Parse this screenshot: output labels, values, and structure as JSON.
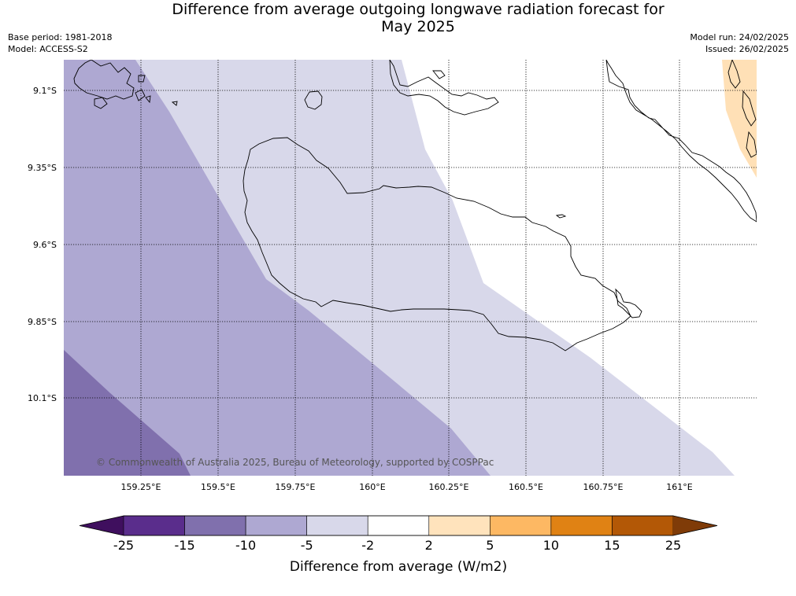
{
  "title_line1": "Difference from average outgoing longwave radiation forecast for",
  "title_line2": "May 2025",
  "base_period": "Base period: 1981-2018",
  "model": "Model: ACCESS-S2",
  "model_run": "Model run: 24/02/2025",
  "issued": "Issued: 26/02/2025",
  "copyright": "© Commonwealth of Australia 2025, Bureau of Meteorology, supported by COSPPac",
  "lat_labels": [
    "9.1°S",
    "9.35°S",
    "9.6°S",
    "9.85°S",
    "10.1°S"
  ],
  "lon_labels": [
    "159.25°E",
    "159.5°E",
    "159.75°E",
    "160°E",
    "160.25°E",
    "160.5°E",
    "160.75°E",
    "161°E"
  ],
  "legend": {
    "title": "Difference from average (W/m2)",
    "ticks": [
      "-25",
      "-15",
      "-10",
      "-5",
      "-2",
      "2",
      "5",
      "10",
      "15",
      "25"
    ],
    "colors": {
      "below_min": "#3f0f5e",
      "bins": [
        "#5a2d8c",
        "#8070ad",
        "#aea8d2",
        "#d8d8ea",
        "#ffffff",
        "#ffe3bc",
        "#fdb863",
        "#e08214",
        "#b35806"
      ],
      "above_max": "#7f3b08"
    }
  },
  "map_colors": {
    "dark_purple": "#8070ad",
    "mid_purple": "#aea8d2",
    "light_purple": "#d8d8ea",
    "peach": "#ffe0b6"
  }
}
